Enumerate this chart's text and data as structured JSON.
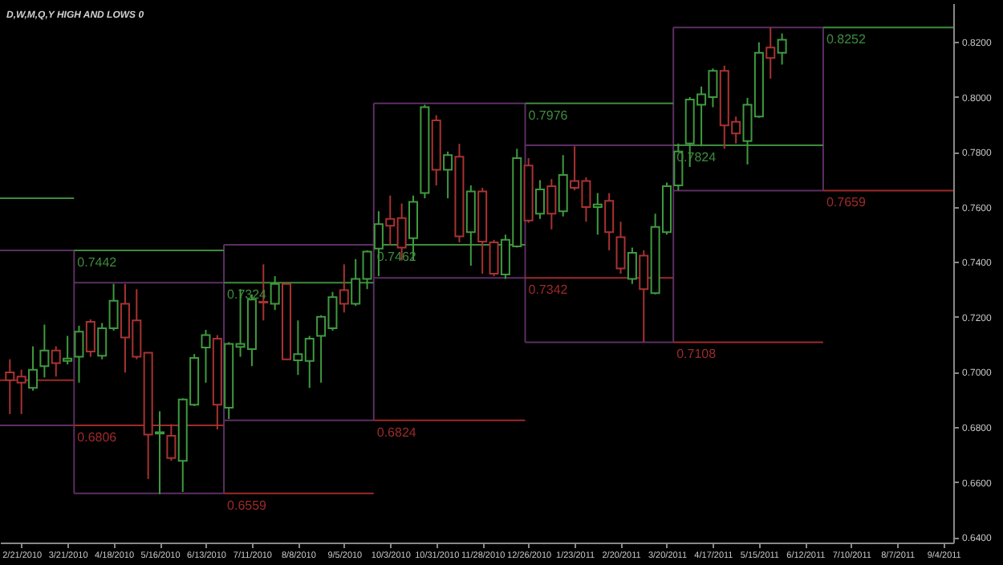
{
  "chart_data": {
    "type": "candlestick",
    "title": "D,W,M,Q,Y HIGH AND LOWS 0",
    "x": [
      "2010-02-14",
      "2010-02-21",
      "2010-02-28",
      "2010-03-07",
      "2010-03-14",
      "2010-03-21",
      "2010-03-28",
      "2010-04-04",
      "2010-04-11",
      "2010-04-18",
      "2010-04-25",
      "2010-05-02",
      "2010-05-09",
      "2010-05-16",
      "2010-05-23",
      "2010-05-30",
      "2010-06-06",
      "2010-06-13",
      "2010-06-20",
      "2010-06-27",
      "2010-07-04",
      "2010-07-11",
      "2010-07-18",
      "2010-07-25",
      "2010-08-01",
      "2010-08-08",
      "2010-08-15",
      "2010-08-22",
      "2010-08-29",
      "2010-09-05",
      "2010-09-12",
      "2010-09-19",
      "2010-09-26",
      "2010-10-03",
      "2010-10-10",
      "2010-10-17",
      "2010-10-24",
      "2010-10-31",
      "2010-11-07",
      "2010-11-14",
      "2010-11-21",
      "2010-11-28",
      "2010-12-05",
      "2010-12-12",
      "2010-12-19",
      "2010-12-26",
      "2011-01-02",
      "2011-01-09",
      "2011-01-16",
      "2011-01-23",
      "2011-01-30",
      "2011-02-06",
      "2011-02-13",
      "2011-02-20",
      "2011-02-27",
      "2011-03-06",
      "2011-03-13",
      "2011-03-20",
      "2011-03-27",
      "2011-04-03",
      "2011-04-10",
      "2011-04-17",
      "2011-04-24",
      "2011-05-01",
      "2011-05-08",
      "2011-05-15",
      "2011-05-22",
      "2011-05-29"
    ],
    "ohlc": [
      [
        0.6998,
        0.7046,
        0.6847,
        0.697
      ],
      [
        0.6983,
        0.7008,
        0.6847,
        0.6961
      ],
      [
        0.6942,
        0.7093,
        0.6932,
        0.7008
      ],
      [
        0.7021,
        0.7172,
        0.698,
        0.7078
      ],
      [
        0.7078,
        0.7093,
        0.6983,
        0.7032
      ],
      [
        0.704,
        0.7131,
        0.7027,
        0.7049
      ],
      [
        0.7055,
        0.7168,
        0.6961,
        0.7146
      ],
      [
        0.7182,
        0.7191,
        0.7055,
        0.7074
      ],
      [
        0.7059,
        0.7178,
        0.7046,
        0.7159
      ],
      [
        0.7159,
        0.732,
        0.715,
        0.7259
      ],
      [
        0.7248,
        0.732,
        0.6998,
        0.7125
      ],
      [
        0.7187,
        0.7301,
        0.7046,
        0.7055
      ],
      [
        0.707,
        0.707,
        0.6611,
        0.6772
      ],
      [
        0.6776,
        0.6857,
        0.6556,
        0.6781
      ],
      [
        0.6768,
        0.681,
        0.6677,
        0.6687
      ],
      [
        0.6677,
        0.6904,
        0.6564,
        0.69
      ],
      [
        0.6881,
        0.7065,
        0.6876,
        0.7051
      ],
      [
        0.7089,
        0.7153,
        0.6961,
        0.7134
      ],
      [
        0.7121,
        0.7134,
        0.6791,
        0.6881
      ],
      [
        0.687,
        0.7108,
        0.6829,
        0.7102
      ],
      [
        0.7091,
        0.7301,
        0.7055,
        0.7102
      ],
      [
        0.7083,
        0.7282,
        0.7021,
        0.7263
      ],
      [
        0.7255,
        0.7391,
        0.7187,
        0.7252
      ],
      [
        0.7248,
        0.7348,
        0.7225,
        0.732
      ],
      [
        0.732,
        0.7323,
        0.7046,
        0.7046
      ],
      [
        0.7042,
        0.7187,
        0.6989,
        0.7065
      ],
      [
        0.704,
        0.7131,
        0.6942,
        0.7121
      ],
      [
        0.7131,
        0.7206,
        0.6961,
        0.72
      ],
      [
        0.7159,
        0.7291,
        0.715,
        0.7272
      ],
      [
        0.7297,
        0.7391,
        0.7216,
        0.7248
      ],
      [
        0.7248,
        0.741,
        0.724,
        0.7338
      ],
      [
        0.7338,
        0.7442,
        0.7301,
        0.7437
      ],
      [
        0.7448,
        0.7584,
        0.7348,
        0.7537
      ],
      [
        0.7556,
        0.7641,
        0.7461,
        0.7531
      ],
      [
        0.7559,
        0.7612,
        0.7405,
        0.7452
      ],
      [
        0.7486,
        0.7641,
        0.7405,
        0.7618
      ],
      [
        0.765,
        0.7971,
        0.7631,
        0.7962
      ],
      [
        0.7914,
        0.7933,
        0.7678,
        0.7735
      ],
      [
        0.7735,
        0.7801,
        0.7631,
        0.7788
      ],
      [
        0.7782,
        0.7829,
        0.7471,
        0.7493
      ],
      [
        0.7508,
        0.7678,
        0.7386,
        0.7656
      ],
      [
        0.7656,
        0.7669,
        0.7357,
        0.7474
      ],
      [
        0.7471,
        0.748,
        0.7348,
        0.7357
      ],
      [
        0.7354,
        0.7499,
        0.7338,
        0.748
      ],
      [
        0.7456,
        0.7811,
        0.7452,
        0.7777
      ],
      [
        0.775,
        0.7777,
        0.7542,
        0.755
      ],
      [
        0.7575,
        0.7697,
        0.7556,
        0.7663
      ],
      [
        0.7675,
        0.7701,
        0.7518,
        0.7575
      ],
      [
        0.7584,
        0.7788,
        0.7565,
        0.7716
      ],
      [
        0.7694,
        0.782,
        0.766,
        0.7669
      ],
      [
        0.7694,
        0.7707,
        0.7546,
        0.7599
      ],
      [
        0.7599,
        0.765,
        0.7499,
        0.7609
      ],
      [
        0.7622,
        0.765,
        0.7442,
        0.7508
      ],
      [
        0.749,
        0.7546,
        0.7357,
        0.7376
      ],
      [
        0.7338,
        0.7452,
        0.732,
        0.7433
      ],
      [
        0.7423,
        0.7442,
        0.7108,
        0.7301
      ],
      [
        0.7286,
        0.7575,
        0.7282,
        0.7527
      ],
      [
        0.7508,
        0.7688,
        0.7499,
        0.7675
      ],
      [
        0.7678,
        0.783,
        0.766,
        0.7801
      ],
      [
        0.783,
        0.7999,
        0.7745,
        0.799
      ],
      [
        0.7971,
        0.8037,
        0.782,
        0.8009
      ],
      [
        0.7999,
        0.8103,
        0.7962,
        0.8094
      ],
      [
        0.8094,
        0.8113,
        0.7811,
        0.7896
      ],
      [
        0.7909,
        0.7928,
        0.783,
        0.7867
      ],
      [
        0.7839,
        0.7996,
        0.7754,
        0.7971
      ],
      [
        0.7928,
        0.8198,
        0.7924,
        0.816
      ],
      [
        0.8179,
        0.8252,
        0.8066,
        0.8141
      ],
      [
        0.816,
        0.823,
        0.8117,
        0.8207
      ]
    ],
    "colors": [
      "#a83232",
      "#a83232",
      "#3f9a3f",
      "#3f9a3f",
      "#a83232",
      "#3f9a3f",
      "#3f9a3f",
      "#a83232",
      "#3f9a3f",
      "#3f9a3f",
      "#a83232",
      "#a83232",
      "#a83232",
      "#3f9a3f",
      "#a83232",
      "#3f9a3f",
      "#3f9a3f",
      "#3f9a3f",
      "#a83232",
      "#3f9a3f",
      "#3f9a3f",
      "#3f9a3f",
      "#a83232",
      "#3f9a3f",
      "#a83232",
      "#3f9a3f",
      "#3f9a3f",
      "#3f9a3f",
      "#3f9a3f",
      "#a83232",
      "#3f9a3f",
      "#3f9a3f",
      "#3f9a3f",
      "#a83232",
      "#a83232",
      "#3f9a3f",
      "#3f9a3f",
      "#a83232",
      "#3f9a3f",
      "#a83232",
      "#3f9a3f",
      "#a83232",
      "#a83232",
      "#3f9a3f",
      "#3f9a3f",
      "#a83232",
      "#3f9a3f",
      "#a83232",
      "#3f9a3f",
      "#a83232",
      "#a83232",
      "#3f9a3f",
      "#a83232",
      "#a83232",
      "#3f9a3f",
      "#a83232",
      "#3f9a3f",
      "#3f9a3f",
      "#3f9a3f",
      "#3f9a3f",
      "#3f9a3f",
      "#3f9a3f",
      "#a83232",
      "#a83232",
      "#3f9a3f",
      "#3f9a3f",
      "#a83232",
      "#3f9a3f"
    ],
    "series": [
      {
        "type": "line",
        "color": "#5c2f63",
        "x": [
          "2010-02-08",
          "2010-03-25"
        ],
        "values": [
          0.7442,
          0.7442
        ]
      },
      {
        "type": "line",
        "color": "#5c2f63",
        "x": [
          "2010-02-08",
          "2010-03-25"
        ],
        "values": [
          0.6806,
          0.6806
        ]
      },
      {
        "type": "line",
        "color": "#5c2f63",
        "x": [
          "2010-03-25",
          "2010-03-25"
        ],
        "values": [
          0.6559,
          0.7442
        ]
      },
      {
        "type": "line",
        "color": "#5c2f63",
        "x": [
          "2010-03-25",
          "2010-06-24"
        ],
        "values": [
          0.7324,
          0.7324
        ]
      },
      {
        "type": "line",
        "color": "#5c2f63",
        "x": [
          "2010-03-25",
          "2010-06-24"
        ],
        "values": [
          0.6559,
          0.6559
        ]
      },
      {
        "type": "line",
        "color": "#5c2f63",
        "x": [
          "2010-06-24",
          "2010-06-24"
        ],
        "values": [
          0.6559,
          0.7462
        ]
      },
      {
        "type": "line",
        "color": "#5c2f63",
        "x": [
          "2010-06-24",
          "2010-09-23"
        ],
        "values": [
          0.7462,
          0.7462
        ]
      },
      {
        "type": "line",
        "color": "#5c2f63",
        "x": [
          "2010-06-24",
          "2010-09-23"
        ],
        "values": [
          0.6824,
          0.6824
        ]
      },
      {
        "type": "line",
        "color": "#5c2f63",
        "x": [
          "2010-09-23",
          "2010-09-23"
        ],
        "values": [
          0.6824,
          0.7976
        ]
      },
      {
        "type": "line",
        "color": "#5c2f63",
        "x": [
          "2010-09-23",
          "2010-12-24"
        ],
        "values": [
          0.7976,
          0.7976
        ]
      },
      {
        "type": "line",
        "color": "#5c2f63",
        "x": [
          "2010-09-23",
          "2010-12-24"
        ],
        "values": [
          0.7342,
          0.7342
        ]
      },
      {
        "type": "line",
        "color": "#5c2f63",
        "x": [
          "2010-12-24",
          "2010-12-24"
        ],
        "values": [
          0.7108,
          0.7976
        ]
      },
      {
        "type": "line",
        "color": "#5c2f63",
        "x": [
          "2010-12-24",
          "2011-03-24"
        ],
        "values": [
          0.7824,
          0.7824
        ]
      },
      {
        "type": "line",
        "color": "#5c2f63",
        "x": [
          "2010-12-24",
          "2011-03-24"
        ],
        "values": [
          0.7108,
          0.7108
        ]
      },
      {
        "type": "line",
        "color": "#5c2f63",
        "x": [
          "2011-03-24",
          "2011-03-24"
        ],
        "values": [
          0.7108,
          0.8252
        ]
      },
      {
        "type": "line",
        "color": "#5c2f63",
        "x": [
          "2011-03-24",
          "2011-06-23"
        ],
        "values": [
          0.8252,
          0.8252
        ]
      },
      {
        "type": "line",
        "color": "#5c2f63",
        "x": [
          "2011-03-24",
          "2011-06-23"
        ],
        "values": [
          0.7659,
          0.7659
        ]
      },
      {
        "type": "line",
        "color": "#5c2f63",
        "x": [
          "2011-06-23",
          "2011-06-23"
        ],
        "values": [
          0.7659,
          0.8252
        ]
      },
      {
        "type": "line",
        "color": "#3d8c3d",
        "x": [
          "2010-02-08",
          "2010-03-25"
        ],
        "values": [
          0.7631,
          0.7631
        ]
      },
      {
        "type": "line",
        "color": "#3d8c3d",
        "x": [
          "2010-03-25",
          "2010-06-24"
        ],
        "values": [
          0.7442,
          0.7442
        ]
      },
      {
        "type": "line",
        "color": "#3d8c3d",
        "x": [
          "2010-06-24",
          "2010-09-23"
        ],
        "values": [
          0.7324,
          0.7324
        ]
      },
      {
        "type": "line",
        "color": "#3d8c3d",
        "x": [
          "2010-09-23",
          "2010-12-24"
        ],
        "values": [
          0.7462,
          0.7462
        ]
      },
      {
        "type": "line",
        "color": "#3d8c3d",
        "x": [
          "2010-12-24",
          "2011-03-24"
        ],
        "values": [
          0.7976,
          0.7976
        ]
      },
      {
        "type": "line",
        "color": "#3d8c3d",
        "x": [
          "2011-03-24",
          "2011-06-23"
        ],
        "values": [
          0.7824,
          0.7824
        ]
      },
      {
        "type": "line",
        "color": "#3d8c3d",
        "x": [
          "2011-06-23",
          "2011-09-10"
        ],
        "values": [
          0.8252,
          0.8252
        ]
      },
      {
        "type": "line",
        "color": "#9e2a2a",
        "x": [
          "2010-02-08",
          "2010-03-25"
        ],
        "values": [
          0.697,
          0.697
        ]
      },
      {
        "type": "line",
        "color": "#9e2a2a",
        "x": [
          "2010-03-25",
          "2010-06-24"
        ],
        "values": [
          0.6806,
          0.6806
        ]
      },
      {
        "type": "line",
        "color": "#9e2a2a",
        "x": [
          "2010-06-24",
          "2010-09-23"
        ],
        "values": [
          0.6559,
          0.6559
        ]
      },
      {
        "type": "line",
        "color": "#9e2a2a",
        "x": [
          "2010-09-23",
          "2010-12-24"
        ],
        "values": [
          0.6824,
          0.6824
        ]
      },
      {
        "type": "line",
        "color": "#9e2a2a",
        "x": [
          "2010-12-24",
          "2011-03-24"
        ],
        "values": [
          0.7342,
          0.7342
        ]
      },
      {
        "type": "line",
        "color": "#9e2a2a",
        "x": [
          "2011-03-24",
          "2011-06-23"
        ],
        "values": [
          0.7108,
          0.7108
        ]
      },
      {
        "type": "line",
        "color": "#9e2a2a",
        "x": [
          "2011-06-23",
          "2011-09-10"
        ],
        "values": [
          0.7659,
          0.7659
        ]
      }
    ],
    "annotations": [
      {
        "text": "0.7442",
        "x": "2010-03-25",
        "y": 0.7442
      },
      {
        "text": "0.7324",
        "x": "2010-06-24",
        "y": 0.7324
      },
      {
        "text": "0.7462",
        "x": "2010-09-23",
        "y": 0.7462
      },
      {
        "text": "0.7976",
        "x": "2010-12-24",
        "y": 0.7976
      },
      {
        "text": "0.7824",
        "x": "2011-03-24",
        "y": 0.7824
      },
      {
        "text": "0.8252",
        "x": "2011-06-23",
        "y": 0.8252
      },
      {
        "text": "0.6806",
        "x": "2010-03-25",
        "y": 0.6806
      },
      {
        "text": "0.6559",
        "x": "2010-06-24",
        "y": 0.6559
      },
      {
        "text": "0.6824",
        "x": "2010-09-23",
        "y": 0.6824
      },
      {
        "text": "0.7342",
        "x": "2010-12-24",
        "y": 0.7342
      },
      {
        "text": "0.7108",
        "x": "2011-03-24",
        "y": 0.7108
      },
      {
        "text": "0.7659",
        "x": "2011-06-23",
        "y": 0.7659
      }
    ],
    "xlim": [
      "2010-02-08",
      "2011-09-10"
    ],
    "xticks": [
      {
        "value": "2010-02-21",
        "label": "2/21/2010"
      },
      {
        "value": "2010-03-21",
        "label": "3/21/2010"
      },
      {
        "value": "2010-04-18",
        "label": "4/18/2010"
      },
      {
        "value": "2010-05-16",
        "label": "5/16/2010"
      },
      {
        "value": "2010-06-13",
        "label": "6/13/2010"
      },
      {
        "value": "2010-07-11",
        "label": "7/11/2010"
      },
      {
        "value": "2010-08-08",
        "label": "8/8/2010"
      },
      {
        "value": "2010-09-05",
        "label": "9/5/2010"
      },
      {
        "value": "2010-10-03",
        "label": "10/3/2010"
      },
      {
        "value": "2010-10-31",
        "label": "10/31/2010"
      },
      {
        "value": "2010-11-28",
        "label": "11/28/2010"
      },
      {
        "value": "2010-12-26",
        "label": "12/26/2010"
      },
      {
        "value": "2011-01-23",
        "label": "1/23/2011"
      },
      {
        "value": "2011-02-20",
        "label": "2/20/2011"
      },
      {
        "value": "2011-03-20",
        "label": "3/20/2011"
      },
      {
        "value": "2011-04-17",
        "label": "4/17/2011"
      },
      {
        "value": "2011-05-15",
        "label": "5/15/2011"
      },
      {
        "value": "2011-06-12",
        "label": "6/12/2011"
      },
      {
        "value": "2011-07-10",
        "label": "7/10/2011"
      },
      {
        "value": "2011-08-07",
        "label": "8/7/2011"
      },
      {
        "value": "2011-09-04",
        "label": "9/4/2011"
      }
    ],
    "ylim": [
      0.638,
      0.834
    ],
    "yticks": [
      {
        "value": 0.64,
        "label": "0.6400"
      },
      {
        "value": 0.66,
        "label": "0.6600"
      },
      {
        "value": 0.68,
        "label": "0.6800"
      },
      {
        "value": 0.7,
        "label": "0.7000"
      },
      {
        "value": 0.72,
        "label": "0.7200"
      },
      {
        "value": 0.74,
        "label": "0.7400"
      },
      {
        "value": 0.76,
        "label": "0.7600"
      },
      {
        "value": 0.78,
        "label": "0.7800"
      },
      {
        "value": 0.8,
        "label": "0.8000"
      },
      {
        "value": 0.82,
        "label": "0.8200"
      }
    ]
  }
}
